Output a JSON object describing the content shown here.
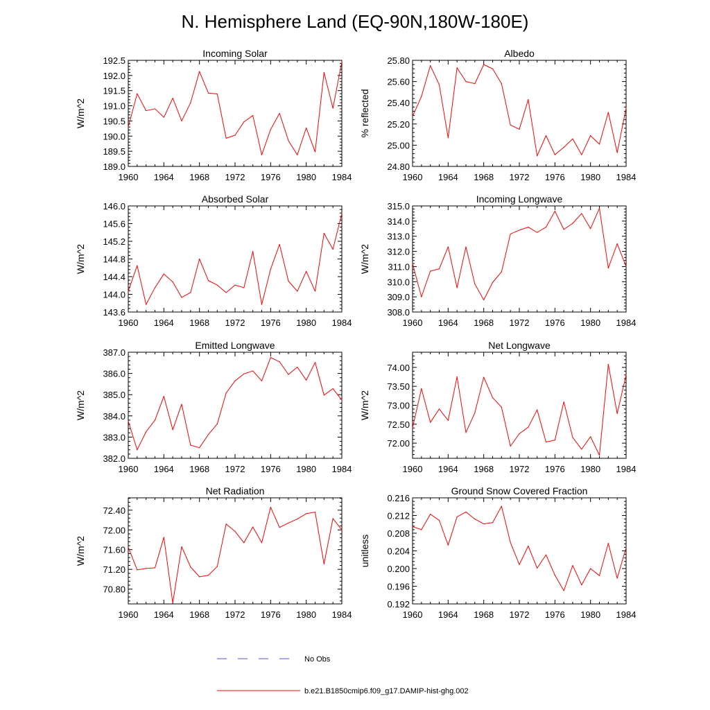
{
  "title": "N. Hemisphere Land (EQ-90N,180W-180E)",
  "colors": {
    "model": "#ff0000",
    "obs": "#5050d0",
    "axis": "#000000"
  },
  "legend": {
    "placement": "bottom-center",
    "entries": [
      {
        "label": "No Obs",
        "style": "dashed",
        "color": "#5050d0"
      },
      {
        "label": "b.e21.B1850cmip6.f09_g17.DAMIP-hist-ghg.002",
        "style": "solid",
        "color": "#ff0000"
      }
    ]
  },
  "chart_data": [
    {
      "type": "line",
      "title": "Incoming Solar",
      "xlabel": "",
      "ylabel": "W/m^2",
      "xlim": [
        1960,
        1984
      ],
      "ylim": [
        189.0,
        192.5
      ],
      "grid": false,
      "xticks": [
        "1960",
        "1964",
        "1968",
        "1972",
        "1976",
        "1980",
        "1984"
      ],
      "yticks": [
        "189.0",
        "189.5",
        "190.0",
        "190.5",
        "191.0",
        "191.5",
        "192.0",
        "192.5"
      ],
      "x": [
        1960,
        1961,
        1962,
        1963,
        1964,
        1965,
        1966,
        1967,
        1968,
        1969,
        1970,
        1971,
        1972,
        1973,
        1974,
        1975,
        1976,
        1977,
        1978,
        1979,
        1980,
        1981,
        1982,
        1983,
        1984
      ],
      "series": [
        {
          "name": "b.e21.B1850cmip6.f09_g17.DAMIP-hist-ghg.002",
          "values": [
            190.3,
            191.4,
            190.84,
            190.9,
            190.62,
            191.25,
            190.5,
            191.1,
            192.13,
            191.42,
            191.39,
            189.93,
            190.03,
            190.47,
            190.68,
            189.38,
            190.22,
            190.75,
            189.85,
            189.38,
            190.27,
            189.48,
            192.1,
            190.92,
            192.45
          ]
        }
      ]
    },
    {
      "type": "line",
      "title": "Albedo",
      "xlabel": "",
      "ylabel": "% reflected",
      "xlim": [
        1960,
        1984
      ],
      "ylim": [
        24.8,
        25.8
      ],
      "grid": false,
      "xticks": [
        "1960",
        "1964",
        "1968",
        "1972",
        "1976",
        "1980",
        "1984"
      ],
      "yticks": [
        "24.80",
        "25.00",
        "25.20",
        "25.40",
        "25.60",
        "25.80"
      ],
      "x": [
        1960,
        1961,
        1962,
        1963,
        1964,
        1965,
        1966,
        1967,
        1968,
        1969,
        1970,
        1971,
        1972,
        1973,
        1974,
        1975,
        1976,
        1977,
        1978,
        1979,
        1980,
        1981,
        1982,
        1983,
        1984
      ],
      "series": [
        {
          "name": "b.e21.B1850cmip6.f09_g17.DAMIP-hist-ghg.002",
          "values": [
            25.27,
            25.46,
            25.75,
            25.57,
            25.07,
            25.73,
            25.6,
            25.58,
            25.76,
            25.72,
            25.58,
            25.19,
            25.15,
            25.43,
            24.9,
            25.09,
            24.91,
            24.98,
            25.06,
            24.91,
            25.09,
            25.01,
            25.31,
            24.93,
            25.35
          ]
        }
      ]
    },
    {
      "type": "line",
      "title": "Absorbed Solar",
      "xlabel": "",
      "ylabel": "W/m^2",
      "xlim": [
        1960,
        1984
      ],
      "ylim": [
        143.6,
        146.0
      ],
      "grid": false,
      "xticks": [
        "1960",
        "1964",
        "1968",
        "1972",
        "1976",
        "1980",
        "1984"
      ],
      "yticks": [
        "143.6",
        "144.0",
        "144.4",
        "144.8",
        "145.2",
        "145.6",
        "146.0"
      ],
      "x": [
        1960,
        1961,
        1962,
        1963,
        1964,
        1965,
        1966,
        1967,
        1968,
        1969,
        1970,
        1971,
        1972,
        1973,
        1974,
        1975,
        1976,
        1977,
        1978,
        1979,
        1980,
        1981,
        1982,
        1983,
        1984
      ],
      "series": [
        {
          "name": "b.e21.B1850cmip6.f09_g17.DAMIP-hist-ghg.002",
          "values": [
            144.07,
            144.65,
            143.77,
            144.15,
            144.46,
            144.28,
            143.93,
            144.04,
            144.8,
            144.31,
            144.21,
            144.04,
            144.21,
            144.15,
            144.97,
            143.77,
            144.57,
            145.13,
            144.3,
            144.07,
            144.52,
            144.07,
            145.38,
            145.02,
            145.83
          ]
        }
      ]
    },
    {
      "type": "line",
      "title": "Incoming Longwave",
      "xlabel": "",
      "ylabel": "W/m^2",
      "xlim": [
        1960,
        1984
      ],
      "ylim": [
        308.0,
        315.0
      ],
      "grid": false,
      "xticks": [
        "1960",
        "1964",
        "1968",
        "1972",
        "1976",
        "1980",
        "1984"
      ],
      "yticks": [
        "308.0",
        "309.0",
        "310.0",
        "311.0",
        "312.0",
        "313.0",
        "314.0",
        "315.0"
      ],
      "x": [
        1960,
        1961,
        1962,
        1963,
        1964,
        1965,
        1966,
        1967,
        1968,
        1969,
        1970,
        1971,
        1972,
        1973,
        1974,
        1975,
        1976,
        1977,
        1978,
        1979,
        1980,
        1981,
        1982,
        1983,
        1984
      ],
      "series": [
        {
          "name": "b.e21.B1850cmip6.f09_g17.DAMIP-hist-ghg.002",
          "values": [
            311.2,
            309.0,
            310.7,
            310.85,
            312.3,
            309.6,
            312.3,
            309.85,
            308.8,
            309.95,
            310.65,
            313.15,
            313.4,
            313.6,
            313.25,
            313.6,
            314.65,
            313.45,
            313.85,
            314.5,
            313.5,
            314.85,
            310.9,
            312.5,
            311.0
          ]
        }
      ]
    },
    {
      "type": "line",
      "title": "Emitted Longwave",
      "xlabel": "",
      "ylabel": "W/m^2",
      "xlim": [
        1960,
        1984
      ],
      "ylim": [
        382.0,
        387.0
      ],
      "grid": false,
      "xticks": [
        "1960",
        "1964",
        "1968",
        "1972",
        "1976",
        "1980",
        "1984"
      ],
      "yticks": [
        "382.0",
        "383.0",
        "384.0",
        "385.0",
        "386.0",
        "387.0"
      ],
      "x": [
        1960,
        1961,
        1962,
        1963,
        1964,
        1965,
        1966,
        1967,
        1968,
        1969,
        1970,
        1971,
        1972,
        1973,
        1974,
        1975,
        1976,
        1977,
        1978,
        1979,
        1980,
        1981,
        1982,
        1983,
        1984
      ],
      "series": [
        {
          "name": "b.e21.B1850cmip6.f09_g17.DAMIP-hist-ghg.002",
          "values": [
            383.75,
            382.4,
            383.25,
            383.8,
            384.92,
            383.35,
            384.55,
            382.62,
            382.5,
            383.12,
            383.62,
            385.08,
            385.65,
            385.98,
            386.12,
            385.65,
            386.75,
            386.55,
            385.95,
            386.3,
            385.68,
            386.52,
            384.98,
            385.28,
            384.75
          ]
        }
      ]
    },
    {
      "type": "line",
      "title": "Net Longwave",
      "xlabel": "",
      "ylabel": "W/m^2",
      "xlim": [
        1960,
        1984
      ],
      "ylim": [
        71.6,
        74.4
      ],
      "grid": false,
      "xticks": [
        "1960",
        "1964",
        "1968",
        "1972",
        "1976",
        "1980",
        "1984"
      ],
      "yticks": [
        "72.00",
        "72.50",
        "73.00",
        "73.50",
        "74.00"
      ],
      "x": [
        1960,
        1961,
        1962,
        1963,
        1964,
        1965,
        1966,
        1967,
        1968,
        1969,
        1970,
        1971,
        1972,
        1973,
        1974,
        1975,
        1976,
        1977,
        1978,
        1979,
        1980,
        1981,
        1982,
        1983,
        1984
      ],
      "series": [
        {
          "name": "b.e21.B1850cmip6.f09_g17.DAMIP-hist-ghg.002",
          "values": [
            72.4,
            73.44,
            72.55,
            72.9,
            72.6,
            73.75,
            72.28,
            72.8,
            73.74,
            73.2,
            72.95,
            71.92,
            72.25,
            72.42,
            72.88,
            72.03,
            72.08,
            73.09,
            72.15,
            71.84,
            72.17,
            71.68,
            74.08,
            72.78,
            73.8
          ]
        }
      ]
    },
    {
      "type": "line",
      "title": "Net Radiation",
      "xlabel": "",
      "ylabel": "W/m^2",
      "xlim": [
        1960,
        1984
      ],
      "ylim": [
        70.5,
        72.65
      ],
      "grid": false,
      "xticks": [
        "1960",
        "1964",
        "1968",
        "1972",
        "1976",
        "1980",
        "1984"
      ],
      "yticks": [
        "70.80",
        "71.20",
        "71.60",
        "72.00",
        "72.40"
      ],
      "x": [
        1960,
        1961,
        1962,
        1963,
        1964,
        1965,
        1966,
        1967,
        1968,
        1969,
        1970,
        1971,
        1972,
        1973,
        1974,
        1975,
        1976,
        1977,
        1978,
        1979,
        1980,
        1981,
        1982,
        1983,
        1984
      ],
      "series": [
        {
          "name": "b.e21.B1850cmip6.f09_g17.DAMIP-hist-ghg.002",
          "values": [
            71.65,
            71.19,
            71.22,
            71.23,
            71.85,
            70.52,
            71.66,
            71.25,
            71.05,
            71.08,
            71.26,
            72.12,
            71.97,
            71.74,
            72.06,
            71.74,
            72.46,
            72.05,
            72.14,
            72.22,
            72.33,
            72.36,
            71.31,
            72.23,
            72.0
          ]
        }
      ]
    },
    {
      "type": "line",
      "title": "Ground Snow Covered Fraction",
      "xlabel": "",
      "ylabel": "unitless",
      "xlim": [
        1960,
        1984
      ],
      "ylim": [
        0.192,
        0.216
      ],
      "grid": false,
      "xticks": [
        "1960",
        "1964",
        "1968",
        "1972",
        "1976",
        "1980",
        "1984"
      ],
      "yticks": [
        "0.192",
        "0.196",
        "0.200",
        "0.204",
        "0.208",
        "0.212",
        "0.216"
      ],
      "x": [
        1960,
        1961,
        1962,
        1963,
        1964,
        1965,
        1966,
        1967,
        1968,
        1969,
        1970,
        1971,
        1972,
        1973,
        1974,
        1975,
        1976,
        1977,
        1978,
        1979,
        1980,
        1981,
        1982,
        1983,
        1984
      ],
      "series": [
        {
          "name": "b.e21.B1850cmip6.f09_g17.DAMIP-hist-ghg.002",
          "values": [
            0.2095,
            0.2088,
            0.2123,
            0.2109,
            0.2053,
            0.2117,
            0.2128,
            0.2112,
            0.2101,
            0.2104,
            0.2141,
            0.2059,
            0.2009,
            0.2051,
            0.2001,
            0.2031,
            0.1985,
            0.195,
            0.2007,
            0.1963,
            0.2,
            0.1984,
            0.2057,
            0.1978,
            0.2047
          ]
        }
      ]
    }
  ]
}
